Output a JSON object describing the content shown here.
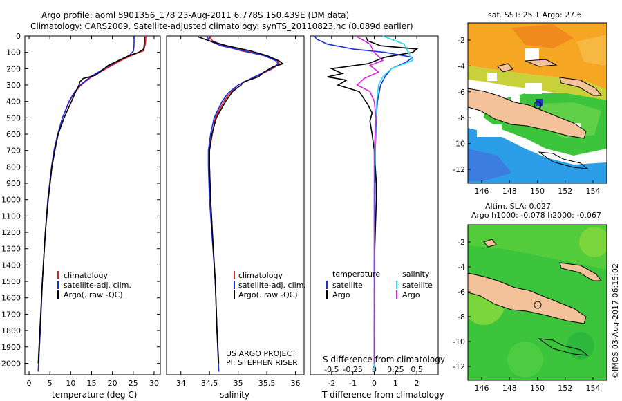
{
  "header": {
    "line1": "Argo profile: aoml 5901356_178 23-Aug-2011 6.778S 150.439E (DM data)",
    "line2": "Climatology: CARS2009. Satellite-adjusted climatology: synTS_20110823.nc (0.089d earlier)"
  },
  "colors": {
    "climatology": "#e02020",
    "satellite": "#1a2fe0",
    "argo": "#000000",
    "sat_t": "#1a2fe0",
    "sat_s": "#20e0e8",
    "argo_s": "#e020e0"
  },
  "chart_data": [
    {
      "type": "line",
      "title": "",
      "xlabel": "temperature (deg C)",
      "ylabel": "",
      "xlim": [
        -1,
        31.5
      ],
      "ylim": [
        2070,
        0
      ],
      "xticks": [
        "0",
        "5",
        "10",
        "15",
        "20",
        "25",
        "30"
      ],
      "xtick_values": [
        0,
        5,
        10,
        15,
        20,
        25,
        30
      ],
      "yticks": [
        "0",
        "100",
        "200",
        "300",
        "400",
        "500",
        "600",
        "700",
        "800",
        "900",
        "1000",
        "1100",
        "1200",
        "1300",
        "1400",
        "1500",
        "1600",
        "1700",
        "1800",
        "1900",
        "2000"
      ],
      "ytick_values": [
        0,
        100,
        200,
        300,
        400,
        500,
        600,
        700,
        800,
        900,
        1000,
        1100,
        1200,
        1300,
        1400,
        1500,
        1600,
        1700,
        1800,
        1900,
        2000
      ],
      "legend": [
        "climatology",
        "satellite-adj. clim.",
        "Argo(..raw -QC)"
      ],
      "series": [
        {
          "name": "climatology",
          "depth": [
            0,
            20,
            50,
            90,
            120,
            150,
            200,
            250,
            300,
            350,
            400,
            500,
            600,
            700,
            800,
            1000,
            1200,
            1500,
            1800,
            2050
          ],
          "values": [
            28.0,
            28.0,
            27.9,
            27.5,
            24.5,
            22.0,
            18.5,
            15.0,
            12.5,
            10.8,
            9.7,
            8.0,
            6.9,
            6.0,
            5.4,
            4.5,
            3.9,
            3.2,
            2.7,
            2.2
          ]
        },
        {
          "name": "satellite-adj. clim.",
          "depth": [
            0,
            20,
            50,
            90,
            120,
            150,
            200,
            250,
            300,
            350,
            400,
            500,
            600,
            700,
            800,
            1000,
            1200,
            1500,
            1800,
            2050
          ],
          "values": [
            25.2,
            25.2,
            25.2,
            25.1,
            24.0,
            21.5,
            18.0,
            14.7,
            12.3,
            10.7,
            9.6,
            8.0,
            6.9,
            6.0,
            5.4,
            4.5,
            3.9,
            3.2,
            2.7,
            2.2
          ]
        },
        {
          "name": "Argo(..raw -QC)",
          "depth": [
            5,
            30,
            60,
            80,
            100,
            120,
            150,
            180,
            210,
            240,
            260,
            280,
            300,
            340,
            400,
            450,
            500,
            600,
            700,
            800,
            1000,
            1200,
            1500,
            1800,
            2000
          ],
          "values": [
            27.7,
            27.7,
            27.6,
            27.5,
            26.3,
            24.0,
            21.5,
            19.0,
            17.5,
            16.0,
            13.0,
            12.2,
            12.0,
            11.2,
            10.2,
            9.3,
            8.4,
            7.0,
            6.2,
            5.5,
            4.6,
            3.9,
            3.2,
            2.6,
            2.2
          ]
        }
      ],
      "watermark": ""
    },
    {
      "type": "line",
      "xlabel": "salinity",
      "xlim": [
        33.75,
        36.15
      ],
      "ylim": [
        2070,
        0
      ],
      "xticks": [
        "34",
        "34.5",
        "35",
        "35.5",
        "36"
      ],
      "xtick_values": [
        34,
        34.5,
        35,
        35.5,
        36
      ],
      "legend": [
        "climatology",
        "satellite-adj. clim.",
        "Argo(..raw -QC)"
      ],
      "series": [
        {
          "name": "climatology",
          "depth": [
            0,
            30,
            60,
            90,
            120,
            150,
            170,
            200,
            250,
            300,
            350,
            400,
            500,
            600,
            700,
            800,
            1000,
            1200,
            1500,
            1800,
            2050
          ],
          "values": [
            34.5,
            34.55,
            34.75,
            35.05,
            35.45,
            35.68,
            35.72,
            35.6,
            35.3,
            35.0,
            34.85,
            34.75,
            34.6,
            34.55,
            34.5,
            34.5,
            34.52,
            34.55,
            34.6,
            34.63,
            34.66
          ]
        },
        {
          "name": "satellite-adj. clim.",
          "depth": [
            0,
            30,
            60,
            90,
            120,
            150,
            170,
            200,
            250,
            300,
            350,
            400,
            500,
            600,
            700,
            800,
            1000,
            1200,
            1500,
            1800,
            2050
          ],
          "values": [
            34.45,
            34.5,
            34.7,
            35.1,
            35.45,
            35.65,
            35.7,
            35.58,
            35.28,
            35.0,
            34.82,
            34.72,
            34.58,
            34.52,
            34.48,
            34.48,
            34.5,
            34.54,
            34.6,
            34.63,
            34.66
          ]
        },
        {
          "name": "Argo(..raw -QC)",
          "depth": [
            5,
            30,
            60,
            90,
            120,
            150,
            170,
            190,
            220,
            250,
            280,
            300,
            340,
            400,
            450,
            500,
            600,
            700,
            800,
            1000,
            1200,
            1500,
            1800,
            2000
          ],
          "values": [
            34.3,
            34.5,
            34.8,
            35.2,
            35.5,
            35.7,
            35.78,
            35.6,
            35.45,
            35.35,
            35.1,
            35.05,
            34.9,
            34.78,
            34.7,
            34.62,
            34.54,
            34.5,
            34.5,
            34.52,
            34.55,
            34.6,
            34.63,
            34.66
          ]
        }
      ],
      "annotations": [
        "US ARGO PROJECT",
        "PI: STEPHEN RISER"
      ]
    },
    {
      "type": "line",
      "xlabel": "T difference from climatology",
      "top_axis_label": "S difference from climatology",
      "xlim": [
        -3,
        3
      ],
      "ylim": [
        2070,
        0
      ],
      "xticks": [
        "-2",
        "-1",
        "0",
        "1",
        "2"
      ],
      "xtick_values": [
        -2,
        -1,
        0,
        1,
        2
      ],
      "top_ticks": [
        "-0.5",
        "-0.25",
        "0",
        "0.25",
        "0.5"
      ],
      "top_tick_values": [
        -0.5,
        -0.25,
        0,
        0.25,
        0.5
      ],
      "legend_groups": [
        {
          "title": "temperature",
          "items": [
            "satellite",
            "Argo"
          ]
        },
        {
          "title": "salinity",
          "items": [
            "satellite",
            "Argo"
          ]
        }
      ],
      "series": [
        {
          "name": "T satellite",
          "depth": [
            0,
            20,
            50,
            80,
            100,
            130,
            160,
            200,
            250,
            300,
            400,
            500,
            700,
            1000,
            1500,
            2050
          ],
          "values": [
            -2.8,
            -2.7,
            -2.2,
            -1.0,
            0.5,
            1.8,
            1.5,
            0.8,
            0.5,
            0.3,
            0.15,
            0.1,
            0.05,
            0.03,
            0.02,
            0.0
          ]
        },
        {
          "name": "T Argo",
          "depth": [
            5,
            30,
            60,
            80,
            100,
            130,
            170,
            200,
            230,
            250,
            270,
            300,
            340,
            380,
            420,
            470,
            520,
            600,
            700,
            800,
            900,
            1000,
            1200,
            1400,
            1600,
            1800,
            2000
          ],
          "values": [
            -0.4,
            -0.3,
            0.3,
            2.0,
            1.8,
            0.5,
            -0.3,
            -2.0,
            -1.5,
            -2.2,
            -1.3,
            -1.7,
            -0.7,
            -0.5,
            -0.3,
            -0.1,
            -0.2,
            -0.1,
            0.0,
            0.05,
            0.1,
            0.1,
            0.05,
            0.0,
            0.02,
            0.0,
            0.0
          ]
        },
        {
          "name": "S satellite",
          "depth": [
            0,
            50,
            100,
            150,
            200,
            250,
            300,
            400,
            500,
            700,
            1000,
            1500,
            2050
          ],
          "values": [
            0.1,
            0.35,
            0.4,
            0.45,
            0.2,
            0.1,
            0.05,
            0.03,
            0.02,
            0.01,
            0.0,
            0.0,
            0.0
          ]
        },
        {
          "name": "S Argo",
          "depth": [
            5,
            50,
            100,
            150,
            180,
            220,
            260,
            300,
            340,
            400,
            500,
            700,
            1000,
            1500,
            2000
          ],
          "values": [
            -0.2,
            -0.05,
            0.0,
            0.1,
            -0.05,
            0.05,
            -0.12,
            -0.2,
            -0.05,
            0.0,
            0.02,
            0.0,
            0.0,
            0.0,
            0.0
          ]
        }
      ]
    }
  ],
  "maps": {
    "top": {
      "title": "sat. SST: 25.1  Argo: 27.6",
      "xticks": [
        "146",
        "148",
        "150",
        "152",
        "154"
      ],
      "yticks": [
        "-2",
        "-4",
        "-6",
        "-8",
        "-10",
        "-12"
      ]
    },
    "bottom": {
      "title1": "Altim. SLA: 0.027",
      "title2": "Argo h1000: -0.078  h2000: -0.067",
      "xticks": [
        "146",
        "148",
        "150",
        "152",
        "154"
      ],
      "yticks": [
        "-2",
        "-4",
        "-6",
        "-8",
        "-10",
        "-12"
      ]
    }
  },
  "footer": {
    "imos": "©IMOS 03-Aug-2017 06:15:02"
  }
}
